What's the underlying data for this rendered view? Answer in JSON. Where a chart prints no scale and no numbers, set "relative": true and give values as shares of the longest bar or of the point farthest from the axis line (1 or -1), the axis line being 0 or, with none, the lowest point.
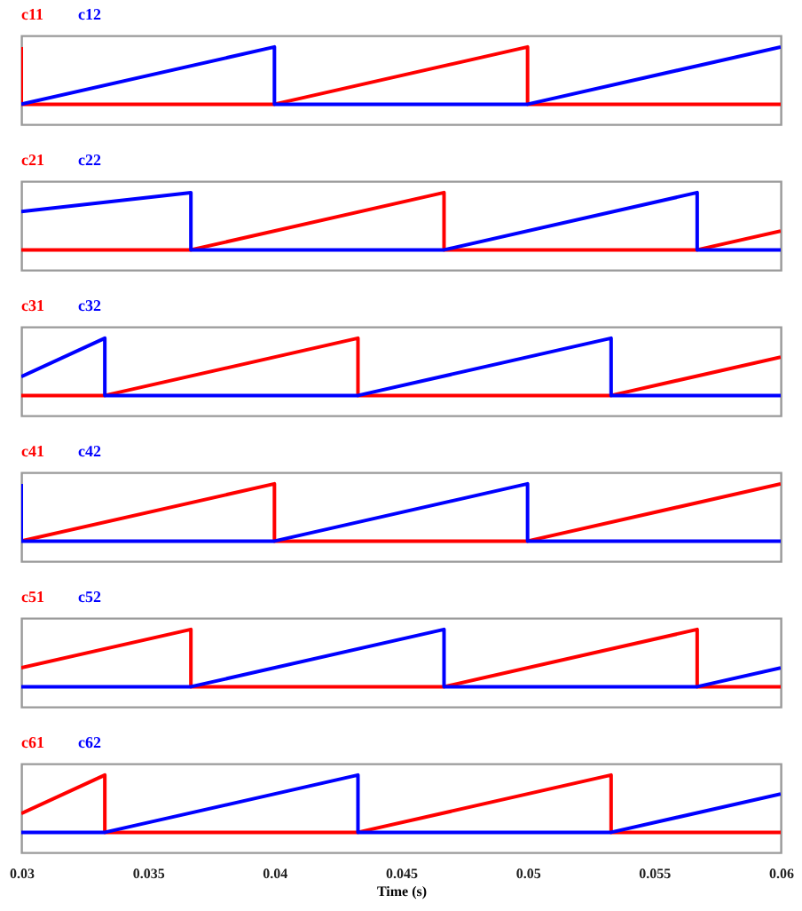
{
  "chart_data": [
    {
      "type": "line",
      "relative": true,
      "grid": false,
      "tick_labels": false,
      "xlim": [
        0.03,
        0.06
      ],
      "xticks": [
        0.03,
        0.035,
        0.04,
        0.045,
        0.05,
        0.055,
        0.06
      ],
      "series": [
        {
          "name": "c11",
          "color": "#ff0000",
          "x": [
            0.03,
            0.03,
            0.04,
            0.05,
            0.05,
            0.06
          ],
          "values": [
            1,
            0,
            0,
            1,
            0,
            0
          ]
        },
        {
          "name": "c12",
          "color": "#0000ff",
          "x": [
            0.03,
            0.04,
            0.04,
            0.05,
            0.06
          ],
          "values": [
            0,
            1,
            0,
            0,
            1
          ]
        }
      ]
    },
    {
      "type": "line",
      "relative": true,
      "grid": false,
      "tick_labels": false,
      "xlim": [
        0.03,
        0.06
      ],
      "xticks": [
        0.03,
        0.035,
        0.04,
        0.045,
        0.05,
        0.055,
        0.06
      ],
      "series": [
        {
          "name": "c21",
          "color": "#ff0000",
          "x": [
            0.03,
            0.0367,
            0.0467,
            0.0467,
            0.0567,
            0.06
          ],
          "values": [
            0,
            0,
            1,
            0,
            0,
            0.33
          ]
        },
        {
          "name": "c22",
          "color": "#0000ff",
          "x": [
            0.03,
            0.0367,
            0.0367,
            0.0467,
            0.0567,
            0.0567,
            0.06
          ],
          "values": [
            0.67,
            1,
            0,
            0,
            1,
            0,
            0
          ]
        }
      ]
    },
    {
      "type": "line",
      "relative": true,
      "grid": false,
      "tick_labels": false,
      "xlim": [
        0.03,
        0.06
      ],
      "xticks": [
        0.03,
        0.035,
        0.04,
        0.045,
        0.05,
        0.055,
        0.06
      ],
      "series": [
        {
          "name": "c31",
          "color": "#ff0000",
          "x": [
            0.03,
            0.0333,
            0.0433,
            0.0433,
            0.0533,
            0.06
          ],
          "values": [
            0,
            0,
            1,
            0,
            0,
            0.67
          ]
        },
        {
          "name": "c32",
          "color": "#0000ff",
          "x": [
            0.03,
            0.0333,
            0.0333,
            0.0433,
            0.0533,
            0.0533,
            0.06
          ],
          "values": [
            0.33,
            1,
            0,
            0,
            1,
            0,
            0
          ]
        }
      ]
    },
    {
      "type": "line",
      "relative": true,
      "grid": false,
      "tick_labels": false,
      "xlim": [
        0.03,
        0.06
      ],
      "xticks": [
        0.03,
        0.035,
        0.04,
        0.045,
        0.05,
        0.055,
        0.06
      ],
      "series": [
        {
          "name": "c41",
          "color": "#ff0000",
          "x": [
            0.03,
            0.04,
            0.04,
            0.05,
            0.06
          ],
          "values": [
            0,
            1,
            0,
            0,
            1
          ]
        },
        {
          "name": "c42",
          "color": "#0000ff",
          "x": [
            0.03,
            0.03,
            0.04,
            0.05,
            0.05,
            0.06
          ],
          "values": [
            1,
            0,
            0,
            1,
            0,
            0
          ]
        }
      ]
    },
    {
      "type": "line",
      "relative": true,
      "grid": false,
      "tick_labels": false,
      "xlim": [
        0.03,
        0.06
      ],
      "xticks": [
        0.03,
        0.035,
        0.04,
        0.045,
        0.05,
        0.055,
        0.06
      ],
      "series": [
        {
          "name": "c51",
          "color": "#ff0000",
          "x": [
            0.03,
            0.0367,
            0.0367,
            0.0467,
            0.0567,
            0.0567,
            0.06
          ],
          "values": [
            0.33,
            1,
            0,
            0,
            1,
            0,
            0
          ]
        },
        {
          "name": "c52",
          "color": "#0000ff",
          "x": [
            0.03,
            0.0367,
            0.0467,
            0.0467,
            0.0567,
            0.06
          ],
          "values": [
            0,
            0,
            1,
            0,
            0,
            0.33
          ]
        }
      ]
    },
    {
      "type": "line",
      "relative": true,
      "grid": false,
      "tick_labels": "x",
      "xlabel": "Time (s)",
      "xlim": [
        0.03,
        0.06
      ],
      "xticks": [
        0.03,
        0.035,
        0.04,
        0.045,
        0.05,
        0.055,
        0.06
      ],
      "series": [
        {
          "name": "c61",
          "color": "#ff0000",
          "x": [
            0.03,
            0.0333,
            0.0333,
            0.0433,
            0.0533,
            0.0533,
            0.06
          ],
          "values": [
            0.33,
            1,
            0,
            0,
            1,
            0,
            0
          ]
        },
        {
          "name": "c62",
          "color": "#0000ff",
          "x": [
            0.03,
            0.0333,
            0.0433,
            0.0433,
            0.0533,
            0.06
          ],
          "values": [
            0,
            0,
            1,
            0,
            0,
            0.67
          ]
        }
      ]
    }
  ]
}
